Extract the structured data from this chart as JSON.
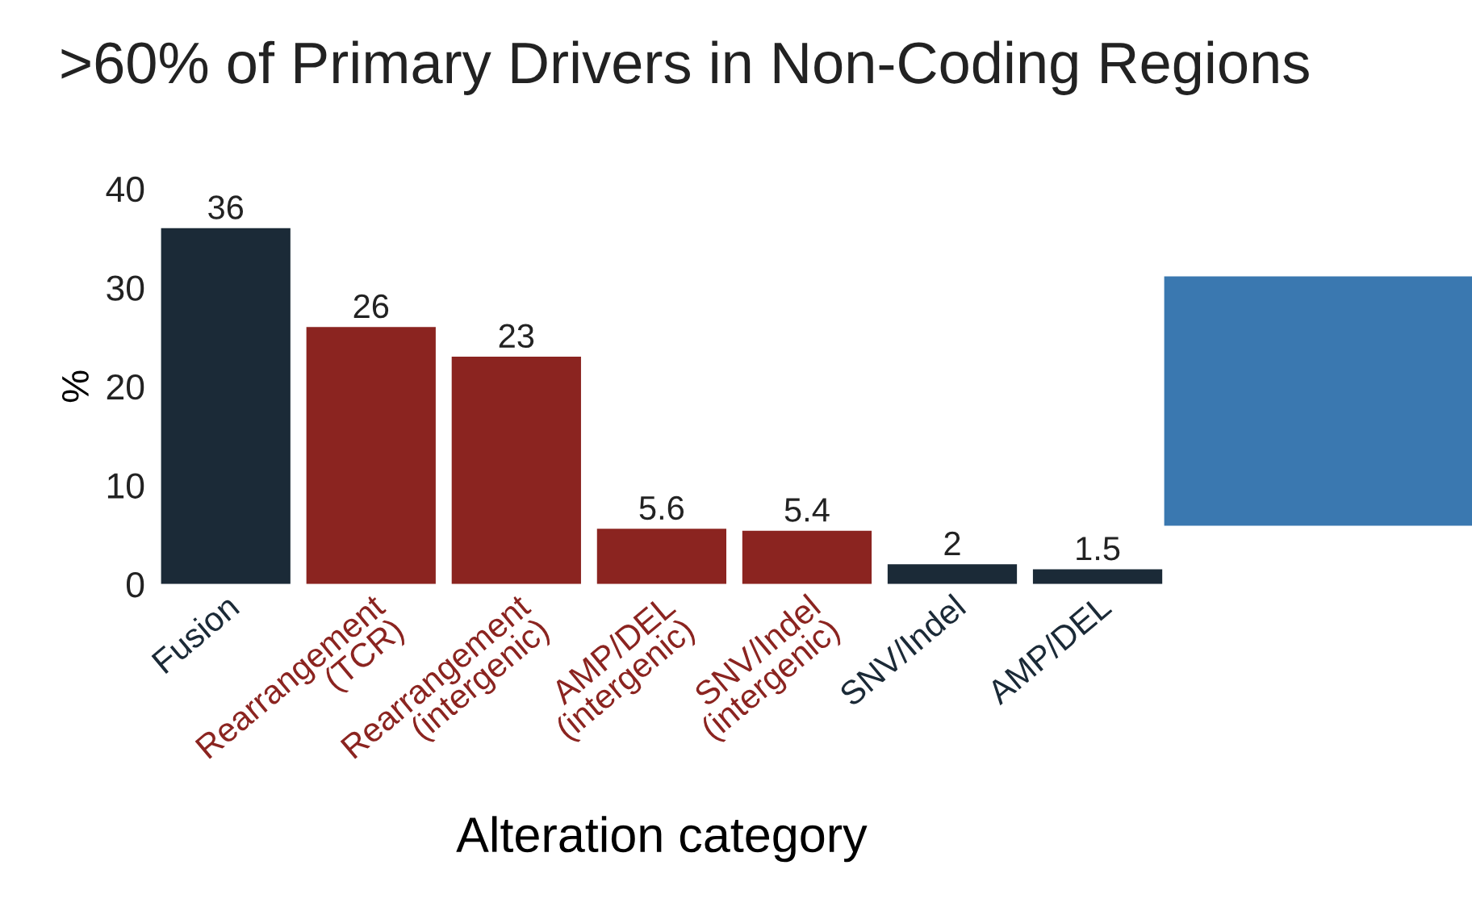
{
  "chart_data": {
    "type": "bar",
    "title": ">60% of Primary Drivers in Non-Coding Regions",
    "xlabel": "Alteration category",
    "ylabel": "%",
    "categories": [
      "Fusion",
      "Rearrangement\n(TCR)",
      "Rearrangement\n(intergenic)",
      "AMP/DEL\n(intergenic)",
      "SNV/Indel\n(intergenic)",
      "SNV/Indel",
      "AMP/DEL"
    ],
    "values": [
      36,
      26,
      23,
      5.6,
      5.4,
      2,
      1.5
    ],
    "colors": [
      "#1b2a37",
      "#8b2420",
      "#8b2420",
      "#8b2420",
      "#8b2420",
      "#1b2a37",
      "#1b2a37"
    ],
    "ylim": [
      0,
      40
    ],
    "yticks": [
      0,
      10,
      20,
      30,
      40
    ],
    "data_labels": true,
    "grid": false,
    "legend": false
  }
}
